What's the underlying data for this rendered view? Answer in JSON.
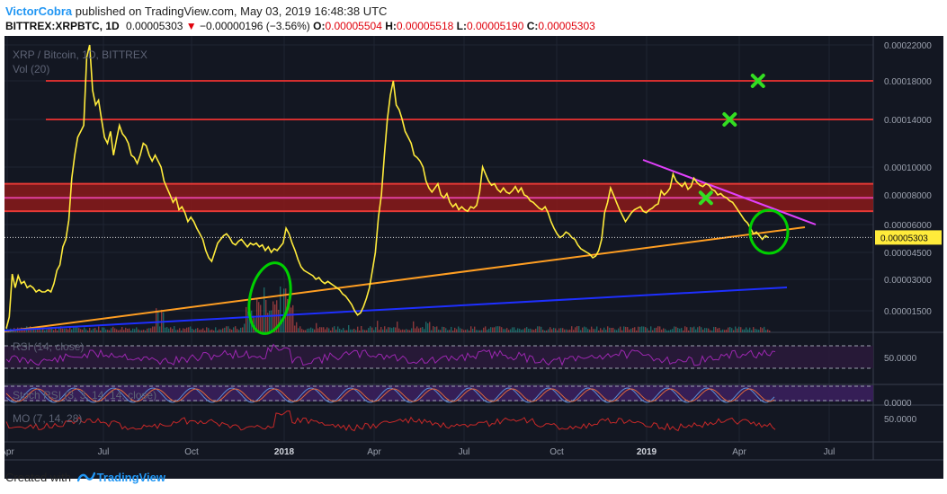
{
  "header": {
    "author": "VictorCobra",
    "published_text": "published on TradingView.com, May 03, 2019 16:48:38 UTC",
    "symbol": "BITTREX:XRPBTC, 1D",
    "last": "0.00005303",
    "change_arrow": "▼",
    "change": "−0.00000196 (−3.56%)",
    "o_label": "O:",
    "o_value": "0.00005504",
    "h_label": "H:",
    "h_value": "0.00005518",
    "l_label": "L:",
    "l_value": "0.00005190",
    "c_label": "C:",
    "c_value": "0.00005303"
  },
  "chart_data": {
    "type": "line",
    "title": "XRP / Bitcoin, 1D, BITTREX",
    "volume_label": "Vol (20)",
    "x_ticks": [
      "Apr",
      "Jul",
      "Oct",
      "2018",
      "Apr",
      "Jul",
      "Oct",
      "2019",
      "Apr",
      "Jul"
    ],
    "y_ticks": [
      "0.00022000",
      "0.00018000",
      "0.00014000",
      "0.00010000",
      "0.00008000",
      "0.00006000",
      "0.00004500",
      "0.00003000",
      "0.00001500"
    ],
    "last_price_label": "0.00005303",
    "series": [
      {
        "values": [
          [
            0,
            6.5e-06
          ],
          [
            2,
            1.2e-05
          ],
          [
            4,
            3.3e-05
          ],
          [
            6,
            2.6e-05
          ],
          [
            8,
            3.2e-05
          ],
          [
            10,
            2.8e-05
          ],
          [
            12,
            2.9e-05
          ],
          [
            14,
            2.6e-05
          ],
          [
            16,
            2.7e-05
          ],
          [
            18,
            2.6e-05
          ],
          [
            20,
            2.4e-05
          ],
          [
            22,
            2.5e-05
          ],
          [
            24,
            2.4e-05
          ],
          [
            26,
            2.4e-05
          ],
          [
            28,
            2.5e-05
          ],
          [
            30,
            2.4e-05
          ],
          [
            32,
            2.8e-05
          ],
          [
            34,
            3.5e-05
          ],
          [
            36,
            3.8e-05
          ],
          [
            38,
            4.8e-05
          ],
          [
            40,
            5.2e-05
          ],
          [
            42,
            6.3e-05
          ],
          [
            44,
            9.2e-05
          ],
          [
            46,
            0.00011
          ],
          [
            48,
            0.000125
          ],
          [
            50,
            0.00013
          ],
          [
            52,
            0.000135
          ],
          [
            54,
            0.000206
          ],
          [
            56,
            0.00022
          ],
          [
            58,
            0.00017
          ],
          [
            60,
            0.000155
          ],
          [
            62,
            0.00016
          ],
          [
            64,
            0.00014
          ],
          [
            66,
            0.000125
          ],
          [
            68,
            0.00012
          ],
          [
            70,
            0.00013
          ],
          [
            72,
            0.00011
          ],
          [
            74,
            0.000123
          ],
          [
            76,
            0.000135
          ],
          [
            78,
            0.000128
          ],
          [
            80,
            0.000125
          ],
          [
            82,
            0.00012
          ],
          [
            84,
            0.00011
          ],
          [
            86,
            0.000108
          ],
          [
            88,
            0.000103
          ],
          [
            90,
            0.00011
          ],
          [
            92,
            0.00012
          ],
          [
            94,
            0.000118
          ],
          [
            96,
            0.00011
          ],
          [
            98,
            0.000105
          ],
          [
            100,
            0.00011
          ],
          [
            102,
            0.000105
          ],
          [
            104,
            0.0001
          ],
          [
            106,
            9e-05
          ],
          [
            108,
            8.5e-05
          ],
          [
            110,
            8e-05
          ],
          [
            112,
            7.5e-05
          ],
          [
            114,
            7.8e-05
          ],
          [
            116,
            7e-05
          ],
          [
            118,
            7.2e-05
          ],
          [
            120,
            6.8e-05
          ],
          [
            122,
            6.2e-05
          ],
          [
            124,
            6.5e-05
          ],
          [
            126,
            6.2e-05
          ],
          [
            128,
            5.8e-05
          ],
          [
            130,
            5.5e-05
          ],
          [
            132,
            5.2e-05
          ],
          [
            134,
            4.6e-05
          ],
          [
            136,
            4.2e-05
          ],
          [
            138,
            4e-05
          ],
          [
            140,
            4.5e-05
          ],
          [
            142,
            5e-05
          ],
          [
            144,
            5.2e-05
          ],
          [
            146,
            5.4e-05
          ],
          [
            148,
            5.5e-05
          ],
          [
            150,
            5.3e-05
          ],
          [
            152,
            5e-05
          ],
          [
            154,
            4.9e-05
          ],
          [
            156,
            5.1e-05
          ],
          [
            158,
            5.2e-05
          ],
          [
            160,
            5e-05
          ],
          [
            162,
            4.8e-05
          ],
          [
            164,
            5e-05
          ],
          [
            166,
            4.9e-05
          ],
          [
            168,
            5e-05
          ],
          [
            170,
            4.8e-05
          ],
          [
            172,
            4.9e-05
          ],
          [
            174,
            4.6e-05
          ],
          [
            176,
            4.8e-05
          ],
          [
            178,
            4.5e-05
          ],
          [
            180,
            4.7e-05
          ],
          [
            182,
            4.6e-05
          ],
          [
            184,
            4.8e-05
          ],
          [
            186,
            5e-05
          ],
          [
            188,
            5.8e-05
          ],
          [
            190,
            5.5e-05
          ],
          [
            192,
            5e-05
          ],
          [
            194,
            4.6e-05
          ],
          [
            196,
            4.1e-05
          ],
          [
            198,
            3.7e-05
          ],
          [
            200,
            3.5e-05
          ],
          [
            202,
            3.4e-05
          ],
          [
            204,
            3.3e-05
          ],
          [
            206,
            3.2e-05
          ],
          [
            208,
            3e-05
          ],
          [
            210,
            3.1e-05
          ],
          [
            212,
            2.9e-05
          ],
          [
            214,
            2.8e-05
          ],
          [
            216,
            2.9e-05
          ],
          [
            218,
            2.8e-05
          ],
          [
            220,
            2.7e-05
          ],
          [
            222,
            2.6e-05
          ],
          [
            224,
            2.5e-05
          ],
          [
            226,
            2.3e-05
          ],
          [
            228,
            2.2e-05
          ],
          [
            230,
            2e-05
          ],
          [
            232,
            1.8e-05
          ],
          [
            234,
            1.5e-05
          ],
          [
            236,
            1.3e-05
          ],
          [
            238,
            1.4e-05
          ],
          [
            240,
            1.7e-05
          ],
          [
            242,
            2.1e-05
          ],
          [
            244,
            2.6e-05
          ],
          [
            246,
            3.5e-05
          ],
          [
            248,
            4.5e-05
          ],
          [
            250,
            6.5e-05
          ],
          [
            252,
            8e-05
          ],
          [
            254,
            0.00011
          ],
          [
            256,
            0.00014
          ],
          [
            258,
            0.000165
          ],
          [
            260,
            0.00018
          ],
          [
            262,
            0.000155
          ],
          [
            264,
            0.00015
          ],
          [
            266,
            0.00014
          ],
          [
            268,
            0.00013
          ],
          [
            270,
            0.000125
          ],
          [
            272,
            0.00012
          ],
          [
            274,
            0.00011
          ],
          [
            276,
            0.000108
          ],
          [
            278,
            0.000105
          ],
          [
            280,
            0.0001
          ],
          [
            282,
            9e-05
          ],
          [
            284,
            8.5e-05
          ],
          [
            286,
            8.2e-05
          ],
          [
            288,
            8.5e-05
          ],
          [
            290,
            8.8e-05
          ],
          [
            292,
            8e-05
          ],
          [
            294,
            7.8e-05
          ],
          [
            296,
            8.1e-05
          ],
          [
            298,
            7.5e-05
          ],
          [
            300,
            7.2e-05
          ],
          [
            302,
            7.4e-05
          ],
          [
            304,
            7e-05
          ],
          [
            306,
            7.2e-05
          ],
          [
            308,
            7e-05
          ],
          [
            310,
            6.9e-05
          ],
          [
            312,
            7.2e-05
          ],
          [
            314,
            7.1e-05
          ],
          [
            316,
            7.3e-05
          ],
          [
            318,
            8.2e-05
          ],
          [
            320,
            0.0001
          ],
          [
            322,
            9.5e-05
          ],
          [
            324,
            9e-05
          ],
          [
            326,
            8.7e-05
          ],
          [
            328,
            8.8e-05
          ],
          [
            330,
            8.4e-05
          ],
          [
            332,
            8.2e-05
          ],
          [
            334,
            8.5e-05
          ],
          [
            336,
            8.2e-05
          ],
          [
            338,
            8.1e-05
          ],
          [
            340,
            8.3e-05
          ],
          [
            342,
            8.6e-05
          ],
          [
            344,
            8.2e-05
          ],
          [
            346,
            8.5e-05
          ],
          [
            348,
            8e-05
          ],
          [
            350,
            7.9e-05
          ],
          [
            352,
            7.6e-05
          ],
          [
            354,
            7.5e-05
          ],
          [
            356,
            7.3e-05
          ],
          [
            358,
            7.1e-05
          ],
          [
            360,
            7e-05
          ],
          [
            362,
            7.2e-05
          ],
          [
            364,
            6.8e-05
          ],
          [
            366,
            6.2e-05
          ],
          [
            368,
            5.8e-05
          ],
          [
            370,
            5.5e-05
          ],
          [
            372,
            5.3e-05
          ],
          [
            374,
            5.4e-05
          ],
          [
            376,
            5.6e-05
          ],
          [
            378,
            5.5e-05
          ],
          [
            380,
            5.3e-05
          ],
          [
            382,
            5.2e-05
          ],
          [
            384,
            4.9e-05
          ],
          [
            386,
            4.7e-05
          ],
          [
            388,
            4.6e-05
          ],
          [
            390,
            4.5e-05
          ],
          [
            392,
            4.4e-05
          ],
          [
            394,
            4.2e-05
          ],
          [
            396,
            4.3e-05
          ],
          [
            398,
            4.6e-05
          ],
          [
            400,
            5.2e-05
          ],
          [
            402,
            6.8e-05
          ],
          [
            404,
            7.5e-05
          ],
          [
            406,
            8.5e-05
          ],
          [
            408,
            8e-05
          ],
          [
            410,
            7.5e-05
          ],
          [
            412,
            7e-05
          ],
          [
            414,
            6.6e-05
          ],
          [
            416,
            6.2e-05
          ],
          [
            418,
            6.5e-05
          ],
          [
            420,
            6.8e-05
          ],
          [
            422,
            7e-05
          ],
          [
            424,
            7.1e-05
          ],
          [
            426,
            7.2e-05
          ],
          [
            428,
            6.9e-05
          ],
          [
            430,
            6.8e-05
          ],
          [
            432,
            7e-05
          ],
          [
            434,
            7.1e-05
          ],
          [
            436,
            7.3e-05
          ],
          [
            438,
            7.4e-05
          ],
          [
            440,
            8.3e-05
          ],
          [
            442,
            8e-05
          ],
          [
            444,
            8.2e-05
          ],
          [
            446,
            8.5e-05
          ],
          [
            448,
            9.5e-05
          ],
          [
            450,
            9e-05
          ],
          [
            452,
            8.8e-05
          ],
          [
            454,
            8.6e-05
          ],
          [
            456,
            8.9e-05
          ],
          [
            458,
            8.4e-05
          ],
          [
            460,
            8.6e-05
          ],
          [
            462,
            9.2e-05
          ],
          [
            464,
            8.9e-05
          ],
          [
            466,
            8.7e-05
          ],
          [
            468,
            8.6e-05
          ],
          [
            470,
            8.8e-05
          ],
          [
            472,
            8.7e-05
          ],
          [
            474,
            8.4e-05
          ],
          [
            476,
            8.3e-05
          ],
          [
            478,
            8e-05
          ],
          [
            480,
            8.1e-05
          ],
          [
            482,
            7.9e-05
          ],
          [
            484,
            7.8e-05
          ],
          [
            486,
            7.6e-05
          ],
          [
            488,
            7.5e-05
          ],
          [
            490,
            7.2e-05
          ],
          [
            492,
            6.9e-05
          ],
          [
            494,
            6.6e-05
          ],
          [
            496,
            6.3e-05
          ],
          [
            498,
            6.1e-05
          ],
          [
            500,
            5.8e-05
          ],
          [
            502,
            5.5e-05
          ],
          [
            504,
            5.6e-05
          ],
          [
            506,
            5.4e-05
          ],
          [
            508,
            5.2e-05
          ],
          [
            510,
            5.4e-05
          ],
          [
            512,
            5.3e-05
          ]
        ]
      }
    ],
    "horizontal_levels": [
      {
        "value": 0.00018,
        "color": "#d32f2f"
      },
      {
        "value": 0.00014,
        "color": "#d32f2f"
      },
      {
        "value": 8.8e-05,
        "color": "#e53935"
      },
      {
        "value": 7.8e-05,
        "color": "#e040a0"
      },
      {
        "value": 6.9e-05,
        "color": "#e53935"
      }
    ],
    "resistance_zone": {
      "from": 6.9e-05,
      "to": 8.8e-05,
      "color": "#8b1a1a"
    },
    "targets": [
      {
        "x": 470,
        "value": 7.8e-05
      },
      {
        "x": 486,
        "value": 0.00014
      },
      {
        "x": 505,
        "value": 0.00018
      }
    ],
    "indicators": [
      {
        "name": "RSI (14, close)",
        "ticks": [
          "50.0000"
        ]
      },
      {
        "name": "Stoch RSI (3, 3, 14, 14, close)",
        "ticks": [
          "0.0000"
        ]
      },
      {
        "name": "MO (7, 14, 28)",
        "ticks": [
          "50.0000"
        ]
      }
    ],
    "grid": true
  },
  "colors": {
    "background": "#131722",
    "price_line": "#ffeb3b",
    "volume_up": "#26a69a",
    "volume_down": "#ef5350",
    "trend_orange": "#ff9e22",
    "trend_blue": "#1e2fff",
    "trend_magenta": "#e040fb",
    "circle_green": "#00d000",
    "target_green": "#33dd22",
    "rsi": "#9c27b0",
    "stoch_k": "#5b8ed6",
    "stoch_d": "#e06a3d",
    "mo": "#c62828"
  },
  "footer": {
    "prefix": "Created with",
    "brand": "TradingView"
  }
}
